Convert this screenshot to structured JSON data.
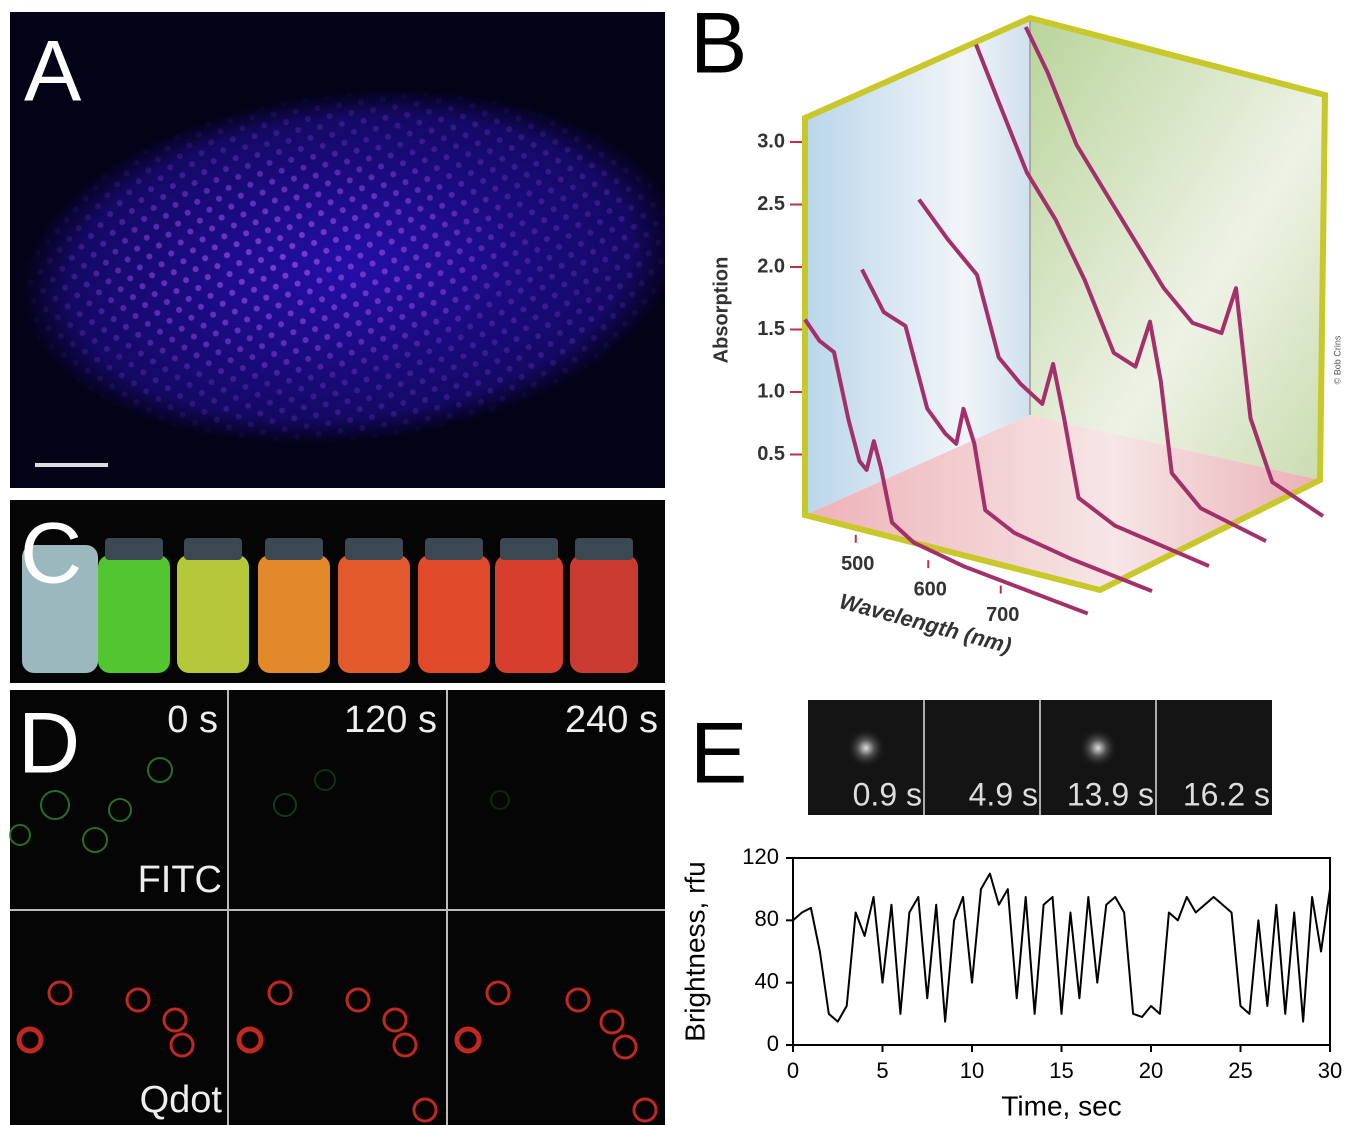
{
  "panels": {
    "a": {
      "label": "A"
    },
    "b": {
      "label": "B",
      "credit": "© Bob Crins"
    },
    "c": {
      "label": "C"
    },
    "d": {
      "label": "D",
      "times": [
        "0 s",
        "120 s",
        "240 s"
      ],
      "rows": [
        "FITC",
        "Qdot"
      ]
    },
    "e": {
      "label": "E",
      "frames": [
        "0.9 s",
        "4.9 s",
        "13.9 s",
        "16.2 s"
      ]
    }
  },
  "chart_data": [
    {
      "type": "line3d",
      "ylabel": "Absorption",
      "xlabel": "Wavelength (nm)",
      "color": "#a3306b",
      "ylim": [
        0,
        3.2
      ],
      "yticks": [
        0.5,
        {
          "value": 1,
          "label": "1.0"
        },
        1.5,
        {
          "value": 2,
          "label": "2.0"
        },
        2.5,
        {
          "value": 3,
          "label": "3.0"
        }
      ],
      "xticks": [
        500,
        600,
        700
      ],
      "series": [
        {
          "x": [
            430,
            450,
            470,
            490,
            505,
            515,
            525,
            535,
            550,
            580,
            650,
            820
          ],
          "values": [
            1.58,
            1.45,
            1.4,
            0.9,
            0.6,
            0.55,
            0.8,
            0.6,
            0.2,
            0.1,
            0.05,
            0.02
          ]
        },
        {
          "x": [
            430,
            460,
            490,
            520,
            545,
            560,
            570,
            585,
            600,
            640,
            720,
            830
          ],
          "values": [
            1.78,
            1.5,
            1.45,
            0.85,
            0.7,
            0.65,
            0.95,
            0.7,
            0.2,
            0.1,
            0.05,
            0.02
          ]
        },
        {
          "x": [
            430,
            470,
            510,
            540,
            570,
            600,
            615,
            630,
            650,
            700,
            830
          ],
          "values": [
            2.14,
            1.9,
            1.7,
            1.1,
            0.95,
            0.85,
            1.2,
            0.8,
            0.2,
            0.08,
            0.02
          ]
        },
        {
          "x": [
            430,
            460,
            500,
            540,
            580,
            620,
            650,
            670,
            685,
            700,
            740,
            830
          ],
          "values": [
            3.18,
            2.8,
            2.3,
            2.0,
            1.6,
            1.1,
            1.05,
            1.45,
            1.0,
            0.3,
            0.1,
            0.02
          ]
        },
        {
          "x": [
            420,
            450,
            490,
            530,
            570,
            610,
            650,
            690,
            710,
            730,
            760,
            830
          ],
          "values": [
            3.1,
            2.8,
            2.3,
            2.0,
            1.7,
            1.4,
            1.2,
            1.2,
            1.6,
            0.6,
            0.15,
            0.02
          ]
        }
      ]
    },
    {
      "type": "line",
      "xlabel": "Time, sec",
      "ylabel": "Brightness, rfu",
      "color": "#000000",
      "xlim": [
        0,
        30
      ],
      "ylim": [
        0,
        120
      ],
      "xticks": [
        0,
        5,
        10,
        15,
        20,
        25,
        30
      ],
      "yticks": [
        0,
        40,
        80,
        120
      ],
      "x": [
        0,
        0.5,
        1,
        1.5,
        2,
        2.5,
        3,
        3.5,
        4,
        4.5,
        5,
        5.5,
        6,
        6.5,
        7,
        7.5,
        8,
        8.5,
        9,
        9.5,
        10,
        10.5,
        11,
        11.5,
        12,
        12.5,
        13,
        13.5,
        14,
        14.5,
        15,
        15.5,
        16,
        16.5,
        17,
        17.5,
        18,
        18.5,
        19,
        19.5,
        20,
        20.5,
        21,
        21.5,
        22,
        22.5,
        23,
        23.5,
        24,
        24.5,
        25,
        25.5,
        26,
        26.5,
        27,
        27.5,
        28,
        28.5,
        29,
        29.5,
        30
      ],
      "values": [
        80,
        85,
        88,
        60,
        20,
        15,
        25,
        85,
        70,
        95,
        40,
        90,
        20,
        85,
        95,
        30,
        90,
        15,
        80,
        95,
        40,
        100,
        110,
        90,
        100,
        30,
        95,
        20,
        90,
        95,
        20,
        85,
        30,
        95,
        40,
        90,
        95,
        85,
        20,
        18,
        25,
        20,
        85,
        80,
        95,
        85,
        90,
        95,
        90,
        85,
        25,
        20,
        80,
        25,
        90,
        20,
        85,
        15,
        95,
        60,
        100
      ]
    }
  ]
}
